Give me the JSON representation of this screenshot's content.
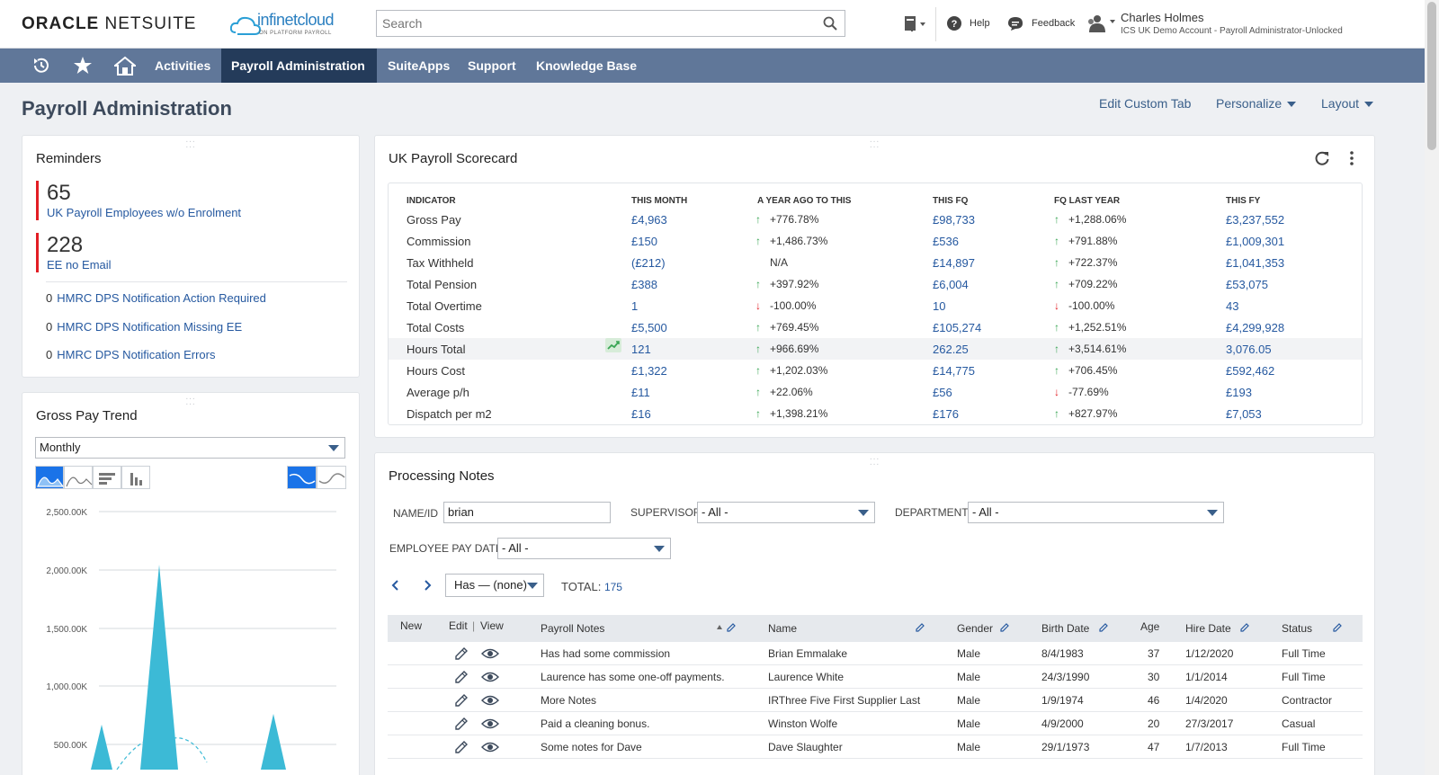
{
  "header": {
    "brand_oracle": "ORACLE",
    "brand_netsuite": "NETSUITE",
    "partner_logo": "infinetcloud",
    "partner_tagline": "ON PLATFORM PAYROLL",
    "search_placeholder": "Search",
    "help_label": "Help",
    "feedback_label": "Feedback",
    "user_name": "Charles Holmes",
    "user_account": "ICS UK Demo Account - Payroll Administrator-Unlocked"
  },
  "nav": {
    "items": [
      "Activities",
      "Payroll Administration",
      "SuiteApps",
      "Support",
      "Knowledge Base"
    ],
    "active": "Payroll Administration"
  },
  "page": {
    "title": "Payroll Administration",
    "edit_custom_tab": "Edit Custom Tab",
    "personalize": "Personalize",
    "layout": "Layout"
  },
  "reminders": {
    "title": "Reminders",
    "big": [
      {
        "count": "65",
        "label": "UK Payroll Employees w/o Enrolment"
      },
      {
        "count": "228",
        "label": "EE no Email"
      }
    ],
    "small": [
      {
        "count": "0",
        "label": "HMRC DPS Notification Action Required"
      },
      {
        "count": "0",
        "label": "HMRC DPS Notification Missing EE"
      },
      {
        "count": "0",
        "label": "HMRC DPS Notification Errors"
      }
    ]
  },
  "trend": {
    "title": "Gross Pay Trend",
    "period": "Monthly",
    "y_ticks": [
      "2,500.00K",
      "2,000.00K",
      "1,500.00K",
      "1,000.00K",
      "500.00K"
    ],
    "accent": "#3cbad6"
  },
  "scorecard": {
    "title": "UK Payroll Scorecard",
    "headers": [
      "INDICATOR",
      "THIS MONTH",
      "A YEAR AGO TO THIS",
      "THIS FQ",
      "FQ LAST YEAR",
      "THIS FY"
    ],
    "rows": [
      {
        "indicator": "Gross Pay",
        "month": "£4,963",
        "yoy": "+776.78%",
        "yoy_dir": "up",
        "fq": "£98,733",
        "fqly": "+1,288.06%",
        "fqly_dir": "up",
        "fy": "£3,237,552"
      },
      {
        "indicator": "Commission",
        "month": "£150",
        "yoy": "+1,486.73%",
        "yoy_dir": "up",
        "fq": "£536",
        "fqly": "+791.88%",
        "fqly_dir": "up",
        "fy": "£1,009,301"
      },
      {
        "indicator": "Tax Withheld",
        "month": "(£212)",
        "yoy": "N/A",
        "yoy_dir": "none",
        "fq": "£14,897",
        "fqly": "+722.37%",
        "fqly_dir": "up",
        "fy": "£1,041,353"
      },
      {
        "indicator": "Total Pension",
        "month": "£388",
        "yoy": "+397.92%",
        "yoy_dir": "up",
        "fq": "£6,004",
        "fqly": "+709.22%",
        "fqly_dir": "up",
        "fy": "£53,075"
      },
      {
        "indicator": "Total Overtime",
        "month": "1",
        "yoy": "-100.00%",
        "yoy_dir": "down",
        "fq": "10",
        "fqly": "-100.00%",
        "fqly_dir": "down",
        "fy": "43"
      },
      {
        "indicator": "Total Costs",
        "month": "£5,500",
        "yoy": "+769.45%",
        "yoy_dir": "up",
        "fq": "£105,274",
        "fqly": "+1,252.51%",
        "fqly_dir": "up",
        "fy": "£4,299,928"
      },
      {
        "indicator": "Hours Total",
        "month": "121",
        "yoy": "+966.69%",
        "yoy_dir": "up",
        "fq": "262.25",
        "fqly": "+3,514.61%",
        "fqly_dir": "up",
        "fy": "3,076.05"
      },
      {
        "indicator": "Hours Cost",
        "month": "£1,322",
        "yoy": "+1,202.03%",
        "yoy_dir": "up",
        "fq": "£14,775",
        "fqly": "+706.45%",
        "fqly_dir": "up",
        "fy": "£592,462"
      },
      {
        "indicator": "Average p/h",
        "month": "£11",
        "yoy": "+22.06%",
        "yoy_dir": "up",
        "fq": "£56",
        "fqly": "-77.69%",
        "fqly_dir": "down",
        "fy": "£193"
      },
      {
        "indicator": "Dispatch per m2",
        "month": "£16",
        "yoy": "+1,398.21%",
        "yoy_dir": "up",
        "fq": "£176",
        "fqly": "+827.97%",
        "fqly_dir": "up",
        "fy": "£7,053"
      }
    ]
  },
  "notes": {
    "title": "Processing Notes",
    "name_label": "NAME/ID",
    "name_value": "brian",
    "supervisor_label": "SUPERVISOR",
    "supervisor_value": "- All -",
    "department_label": "DEPARTMENT",
    "department_value": "- All -",
    "paydate_label": "EMPLOYEE PAY DATE",
    "paydate_value": "- All -",
    "filter_value": "Has — (none)",
    "total_label": "TOTAL:",
    "total_value": "175",
    "columns": [
      "New",
      "Edit",
      "|",
      "View",
      "Payroll Notes",
      "Name",
      "Gender",
      "Birth Date",
      "Age",
      "Hire Date",
      "Status"
    ],
    "rows": [
      {
        "note": "Has had some commission",
        "name": "Brian Emmalake",
        "gender": "Male",
        "birth": "8/4/1983",
        "age": "37",
        "hire": "1/12/2020",
        "status": "Full Time"
      },
      {
        "note": "Laurence has some one-off payments.",
        "name": "Laurence White",
        "gender": "Male",
        "birth": "24/3/1990",
        "age": "30",
        "hire": "1/1/2014",
        "status": "Full Time"
      },
      {
        "note": "More Notes",
        "name": "IRThree Five First Supplier Last",
        "gender": "Male",
        "birth": "1/9/1974",
        "age": "46",
        "hire": "1/4/2020",
        "status": "Contractor"
      },
      {
        "note": "Paid a cleaning bonus.",
        "name": "Winston Wolfe",
        "gender": "Male",
        "birth": "4/9/2000",
        "age": "20",
        "hire": "27/3/2017",
        "status": "Casual"
      },
      {
        "note": "Some notes for Dave",
        "name": "Dave Slaughter",
        "gender": "Male",
        "birth": "29/1/1973",
        "age": "47",
        "hire": "1/7/2013",
        "status": "Full Time"
      }
    ]
  }
}
